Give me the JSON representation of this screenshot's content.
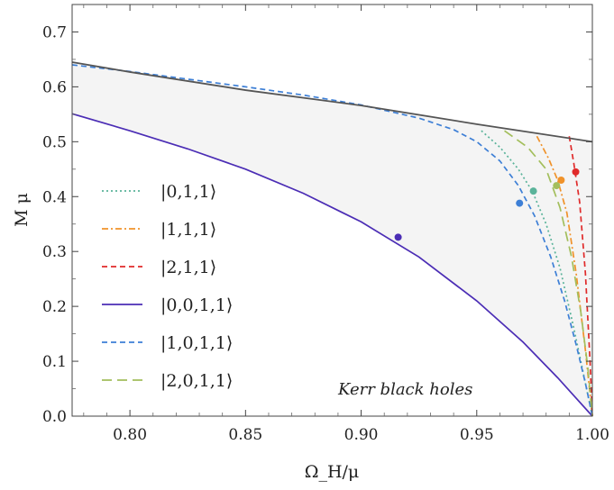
{
  "chart_data": {
    "type": "line",
    "xlabel": "Ω_H/μ",
    "ylabel": "M μ",
    "xlim": [
      0.775,
      1.0
    ],
    "ylim": [
      0.0,
      0.75
    ],
    "xticks": [
      "0.80",
      "0.85",
      "0.90",
      "0.95",
      "1.00"
    ],
    "yticks": [
      "0.0",
      "0.1",
      "0.2",
      "0.3",
      "0.4",
      "0.5",
      "0.6",
      "0.7"
    ],
    "grid": false,
    "legend_position": "left",
    "annotation": "Kerr black holes",
    "series": [
      {
        "name": "|0,1,1⟩",
        "color": "#5ab39a",
        "style": "dotted",
        "x": [
          0.952,
          0.96,
          0.968,
          0.974,
          0.98,
          0.986,
          0.992,
          0.996,
          1.0
        ],
        "y": [
          0.52,
          0.49,
          0.45,
          0.41,
          0.35,
          0.27,
          0.16,
          0.08,
          0.0
        ],
        "marker": {
          "x": 0.9745,
          "y": 0.41
        }
      },
      {
        "name": "|1,1,1⟩",
        "color": "#f0922a",
        "style": "dashdot",
        "x": [
          0.976,
          0.981,
          0.985,
          0.989,
          0.993,
          0.997,
          1.0
        ],
        "y": [
          0.51,
          0.47,
          0.43,
          0.37,
          0.26,
          0.12,
          0.0
        ],
        "marker": {
          "x": 0.9865,
          "y": 0.43
        }
      },
      {
        "name": "|2,1,1⟩",
        "color": "#e02a2a",
        "style": "dashed",
        "x": [
          0.99,
          0.992,
          0.9945,
          0.997,
          0.999,
          1.0
        ],
        "y": [
          0.51,
          0.46,
          0.39,
          0.26,
          0.1,
          0.0
        ],
        "marker": {
          "x": 0.9928,
          "y": 0.445
        }
      },
      {
        "name": "|0,0,1,1⟩",
        "color": "#4b2db5",
        "style": "solid",
        "x": [
          0.775,
          0.8,
          0.825,
          0.85,
          0.875,
          0.9,
          0.925,
          0.95,
          0.97,
          0.985,
          1.0
        ],
        "y": [
          0.551,
          0.52,
          0.487,
          0.45,
          0.406,
          0.354,
          0.29,
          0.21,
          0.135,
          0.07,
          0.0
        ],
        "marker": {
          "x": 0.916,
          "y": 0.326
        }
      },
      {
        "name": "|1,0,1,1⟩",
        "color": "#3d7fd6",
        "style": "dashed",
        "x": [
          0.775,
          0.8,
          0.825,
          0.85,
          0.875,
          0.9,
          0.925,
          0.94,
          0.95,
          0.96,
          0.968,
          0.975,
          0.982,
          0.988,
          0.993,
          0.997,
          1.0
        ],
        "y": [
          0.64,
          0.628,
          0.614,
          0.6,
          0.585,
          0.567,
          0.543,
          0.522,
          0.5,
          0.465,
          0.42,
          0.365,
          0.29,
          0.21,
          0.13,
          0.06,
          0.0
        ],
        "marker": {
          "x": 0.9685,
          "y": 0.388
        }
      },
      {
        "name": "|2,0,1,1⟩",
        "color": "#a3be5c",
        "style": "longdash",
        "x": [
          0.962,
          0.972,
          0.98,
          0.986,
          0.991,
          0.995,
          0.998,
          1.0
        ],
        "y": [
          0.52,
          0.49,
          0.45,
          0.38,
          0.29,
          0.19,
          0.09,
          0.0
        ],
        "marker": {
          "x": 0.9845,
          "y": 0.42
        }
      },
      {
        "name": "",
        "color": "#555555",
        "style": "solid",
        "x": [
          0.775,
          0.8,
          0.85,
          0.9,
          0.95,
          1.0
        ],
        "y": [
          0.645,
          0.627,
          0.594,
          0.566,
          0.532,
          0.5
        ]
      }
    ]
  }
}
